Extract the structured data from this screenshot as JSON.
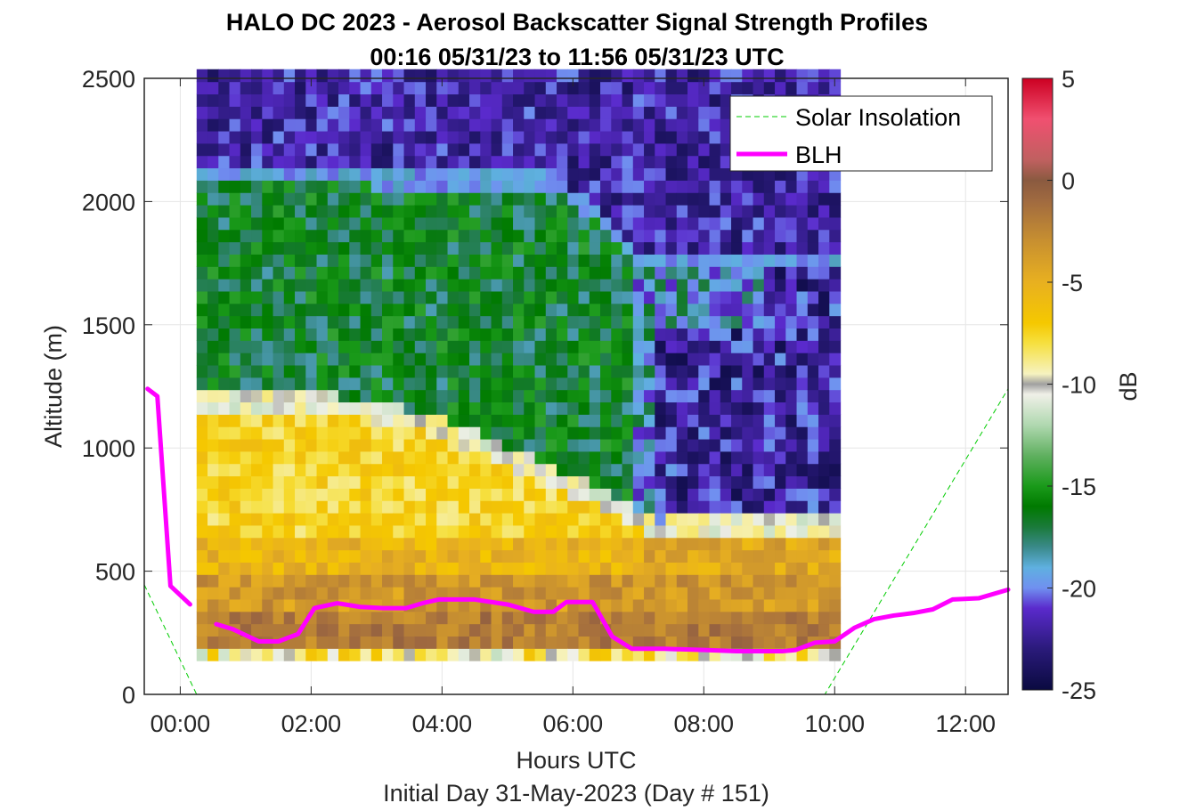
{
  "chart_data": {
    "type": "heatmap",
    "title": "HALO DC 2023 - Aerosol Backscatter Signal Strength Profiles",
    "subtitle": "00:16 05/31/23 to 11:56 05/31/23  UTC",
    "xlabel": "Hours UTC",
    "xlabel2": "Initial Day 31-May-2023 (Day # 151)",
    "ylabel": "Altitude (m)",
    "colorbar_label": "dB",
    "xlim_hours": [
      -0.55,
      12.65
    ],
    "ylim": [
      0,
      2500
    ],
    "x_ticks": [
      0,
      2,
      4,
      6,
      8,
      10,
      12
    ],
    "x_tick_labels": [
      "00:00",
      "02:00",
      "04:00",
      "06:00",
      "08:00",
      "10:00",
      "12:00"
    ],
    "y_ticks": [
      0,
      500,
      1000,
      1500,
      2000,
      2500
    ],
    "y_tick_labels": [
      "0",
      "500",
      "1000",
      "1500",
      "2000",
      "2500"
    ],
    "clim": [
      -25,
      5
    ],
    "colorbar_ticks": [
      5,
      0,
      -5,
      -10,
      -15,
      -20,
      -25
    ],
    "colorbar_tick_labels": [
      "5",
      "0",
      "-5",
      "-10",
      "-15",
      "-20",
      "-25"
    ],
    "grid": true,
    "legend_position": "top-right",
    "legend": [
      {
        "name": "Solar Insolation",
        "color": "#00cc00",
        "style": "dashed"
      },
      {
        "name": "BLH",
        "color": "#ff00ff",
        "style": "solid"
      }
    ],
    "colormap": [
      [
        -25,
        "#0a0a40"
      ],
      [
        -23,
        "#2a1a7a"
      ],
      [
        -21,
        "#5a2acc"
      ],
      [
        -20,
        "#7090f0"
      ],
      [
        -19,
        "#5fb0e0"
      ],
      [
        -18,
        "#3a8a8a"
      ],
      [
        -17,
        "#1a7a3a"
      ],
      [
        -16,
        "#007a00"
      ],
      [
        -15,
        "#1a9a1a"
      ],
      [
        -13.5,
        "#60b060"
      ],
      [
        -12,
        "#b0d8b0"
      ],
      [
        -10.5,
        "#f0f0e8"
      ],
      [
        -10,
        "#a0a0a0"
      ],
      [
        -9.5,
        "#f6f2c0"
      ],
      [
        -8,
        "#f6e040"
      ],
      [
        -7,
        "#f5c800"
      ],
      [
        -5,
        "#e8b020"
      ],
      [
        -3,
        "#c89030"
      ],
      [
        -1,
        "#a06a40"
      ],
      [
        0,
        "#8a5a40"
      ],
      [
        1,
        "#c06060"
      ],
      [
        3,
        "#f05070"
      ],
      [
        5,
        "#cc0022"
      ]
    ],
    "heatmap": {
      "x_start_hours": 0.25,
      "x_step_hours": 0.1667,
      "y_start_m": 137,
      "y_step_m": 50,
      "n_columns": 59,
      "n_rows": 48
    },
    "blh_series": [
      {
        "x": [
          -0.5,
          -0.35,
          -0.15,
          0.15
        ],
        "y": [
          1240,
          1210,
          440,
          365
        ]
      },
      {
        "x": [
          0.55,
          0.8,
          1.2,
          1.5,
          1.8,
          2.05,
          2.4,
          2.75,
          3.1,
          3.45,
          3.7,
          3.95,
          4.5,
          5.0,
          5.4,
          5.7,
          5.9,
          6.3,
          6.6,
          6.9,
          7.4,
          8.0,
          8.5,
          8.9,
          9.2,
          9.4,
          9.7,
          10.0,
          10.3,
          10.6,
          10.9,
          11.2,
          11.5,
          11.8,
          12.2,
          12.65
        ],
        "y": [
          285,
          265,
          215,
          215,
          245,
          350,
          370,
          355,
          350,
          350,
          370,
          385,
          385,
          365,
          335,
          335,
          375,
          375,
          235,
          185,
          185,
          180,
          175,
          175,
          175,
          180,
          210,
          215,
          270,
          305,
          320,
          330,
          345,
          385,
          390,
          425
        ]
      }
    ],
    "solar_insolation": {
      "x": [
        -0.55,
        0.25,
        9.85,
        12.65
      ],
      "y": [
        445,
        0,
        0,
        1240
      ]
    }
  }
}
